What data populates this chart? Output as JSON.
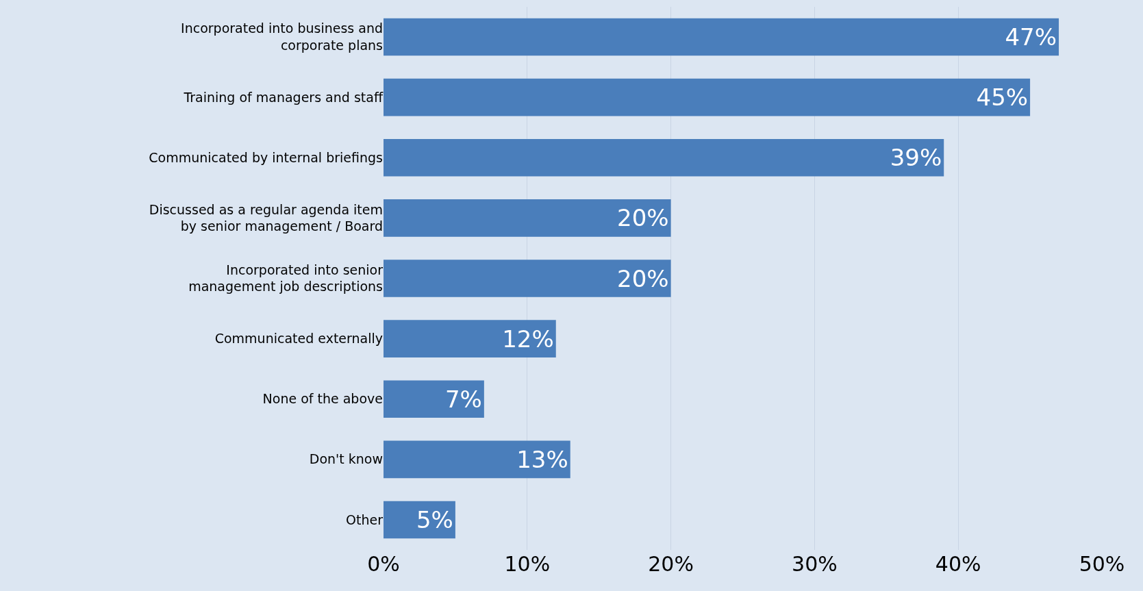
{
  "chart_data": {
    "type": "bar",
    "orientation": "horizontal",
    "categories": [
      "Incorporated into business and corporate plans",
      "Training of managers and staff",
      "Communicated by internal briefings",
      "Discussed as a regular agenda item by senior management / Board",
      "Incorporated into senior management job descriptions",
      "Communicated externally",
      "None of the above",
      "Don't know",
      "Other"
    ],
    "values": [
      47,
      45,
      39,
      20,
      20,
      12,
      7,
      13,
      5
    ],
    "value_labels": [
      "47%",
      "45%",
      "39%",
      "20%",
      "20%",
      "12%",
      "7%",
      "13%",
      "5%"
    ],
    "color": "#4a7ebb",
    "xlim": [
      0,
      50
    ],
    "xticks": [
      {
        "value": 0,
        "label": "0%"
      },
      {
        "value": 10,
        "label": "10%"
      },
      {
        "value": 20,
        "label": "20%"
      },
      {
        "value": 30,
        "label": "30%"
      },
      {
        "value": 40,
        "label": "40%"
      },
      {
        "value": 50,
        "label": "50%"
      }
    ],
    "grid": "x"
  }
}
